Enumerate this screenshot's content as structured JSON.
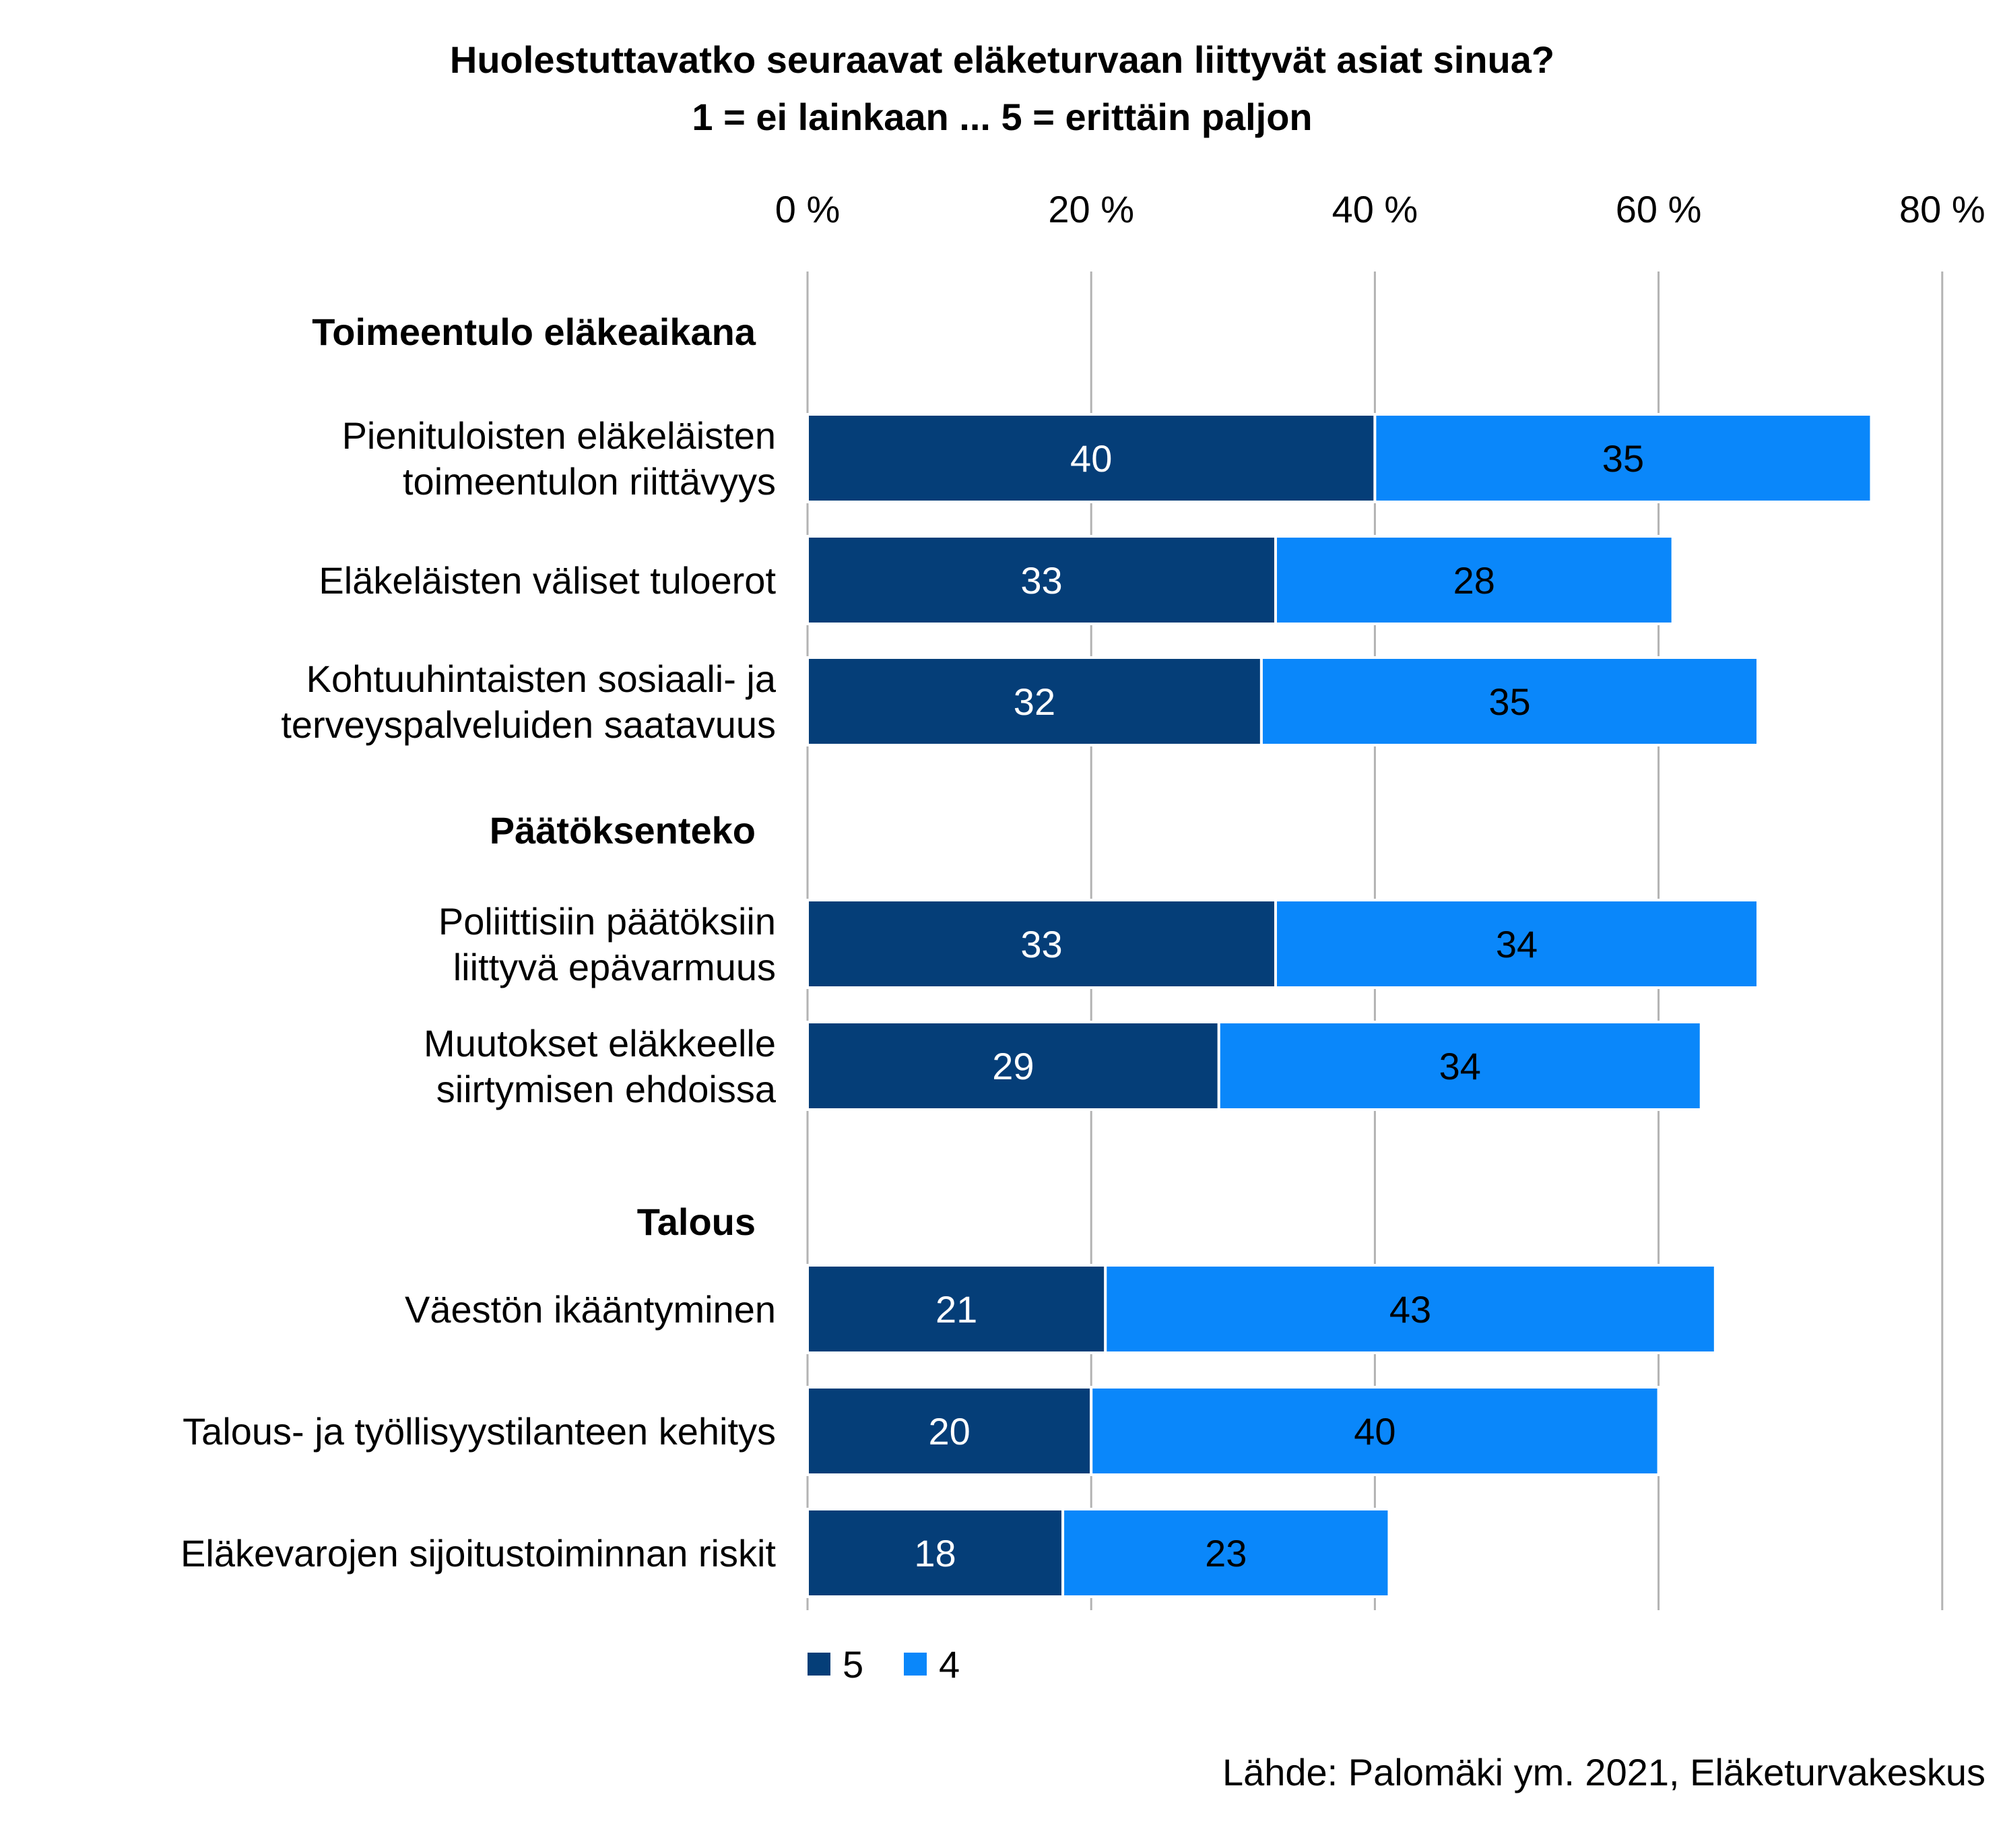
{
  "chart_data": {
    "type": "bar",
    "orientation": "horizontal",
    "stacked": true,
    "title": "Huolestuttavatko seuraavat eläketurvaan liittyvät asiat sinua?",
    "subtitle": "1 = ei lainkaan ... 5 = erittäin paljon",
    "x_ticks": [
      "0 %",
      "20 %",
      "40 %",
      "60 %",
      "80 %"
    ],
    "xlim": [
      0,
      80
    ],
    "grid": true,
    "legend_position": "bottom-left",
    "groups": [
      {
        "label": "Toimeentulo eläkeaikana",
        "items": [
          {
            "label": [
              "Pienituloisten eläkeläisten",
              "toimeentulon riittävyys"
            ],
            "values": [
              40,
              35
            ]
          },
          {
            "label": [
              "Eläkeläisten väliset tuloerot"
            ],
            "values": [
              33,
              28
            ]
          },
          {
            "label": [
              "Kohtuuhintaisten sosiaali- ja",
              "terveyspalveluiden saatavuus"
            ],
            "values": [
              32,
              35
            ]
          }
        ]
      },
      {
        "label": "Päätöksenteko",
        "items": [
          {
            "label": [
              "Poliittisiin päätöksiin",
              "liittyvä epävarmuus"
            ],
            "values": [
              33,
              34
            ]
          },
          {
            "label": [
              "Muutokset eläkkeelle",
              "siirtymisen ehdoissa"
            ],
            "values": [
              29,
              34
            ]
          }
        ]
      },
      {
        "label": "Talous",
        "items": [
          {
            "label": [
              "Väestön ikääntyminen"
            ],
            "values": [
              21,
              43
            ]
          },
          {
            "label": [
              "Talous- ja työllisyystilanteen kehitys"
            ],
            "values": [
              20,
              40
            ]
          },
          {
            "label": [
              "Eläkevarojen sijoitustoiminnan riskit"
            ],
            "values": [
              18,
              23
            ]
          }
        ]
      }
    ],
    "series": [
      {
        "name": "5",
        "color": "#053e78",
        "label_color": "#ffffff"
      },
      {
        "name": "4",
        "color": "#0a87fa",
        "label_color": "#000000"
      }
    ]
  },
  "source": "Lähde: Palomäki ym. 2021, Eläketurvakeskus",
  "colors": {
    "gridline": "#b3b3b3",
    "background": "#ffffff"
  }
}
